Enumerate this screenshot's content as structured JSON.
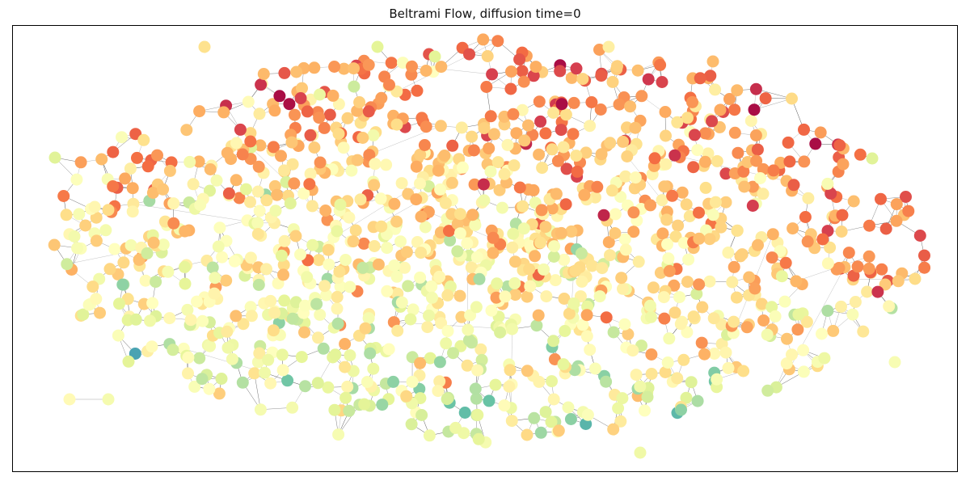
{
  "figure": {
    "title": "Beltrami Flow, diffusion time=0"
  },
  "graph": {
    "type": "network-scatter",
    "node_count_estimate": 1300,
    "edge_color": "#000000",
    "edge_opacity_range": [
      0.25,
      0.7
    ],
    "colormap": "Spectral",
    "colormap_stops": [
      "#9e0142",
      "#d53e4f",
      "#f46d43",
      "#fdae61",
      "#fee08b",
      "#ffffbf",
      "#e6f598",
      "#abdda4",
      "#66c2a5",
      "#3288bd",
      "#5e4fa2"
    ],
    "value_range": [
      0,
      1
    ],
    "dominant_palette": [
      "#fdae61",
      "#fee08b",
      "#ffffbf",
      "#e6f598",
      "#abdda4",
      "#f46d43",
      "#d53e4f",
      "#66c2a5",
      "#3288bd",
      "#9e0142"
    ],
    "axes_visible": false,
    "grid": false,
    "legend": "none"
  }
}
